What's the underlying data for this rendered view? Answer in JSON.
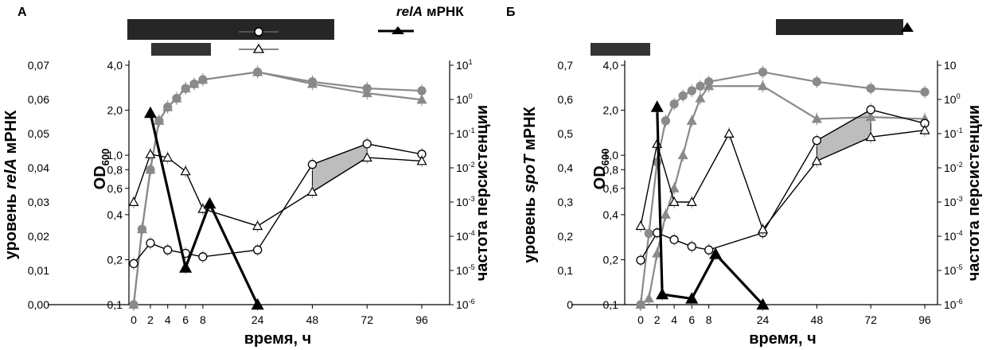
{
  "figure": {
    "legend": {
      "relA_label": "relA",
      "relA_unit": "мРНК"
    }
  },
  "chart_data": [
    {
      "panel_label": "А",
      "type": "line",
      "xlabel": "время, ч",
      "x_ticks": [
        "0",
        "2",
        "4",
        "6",
        "8",
        "24",
        "48",
        "72",
        "96"
      ],
      "left_axis": {
        "label_prefix": "уровень ",
        "gene": "relA",
        "label_suffix": " мРНК",
        "range": [
          0,
          0.07
        ],
        "ticks": [
          "0,00",
          "0,01",
          "0,02",
          "0,03",
          "0,04",
          "0,05",
          "0,06",
          "0,07"
        ]
      },
      "od_axis": {
        "label": "OD",
        "label_sub": "600",
        "scale": "log",
        "range": [
          0.1,
          4.0
        ],
        "ticks": [
          "0,1",
          "0,2",
          "0,4",
          "0,6",
          "0,8",
          "1,0",
          "2,0",
          "4,0"
        ]
      },
      "right_axis": {
        "label": "частота персистенции",
        "scale": "log",
        "range": [
          1e-06,
          10
        ],
        "ticks": [
          {
            "base": "10",
            "exp": "1"
          },
          {
            "base": "10",
            "exp": "0"
          },
          {
            "base": "10",
            "exp": "-1"
          },
          {
            "base": "10",
            "exp": "-2"
          },
          {
            "base": "10",
            "exp": "-3"
          },
          {
            "base": "10",
            "exp": "-4"
          },
          {
            "base": "10",
            "exp": "-5"
          },
          {
            "base": "10",
            "exp": "-6"
          }
        ]
      },
      "series": [
        {
          "style": "gray-filled-circle",
          "axis": "od",
          "points": [
            [
              0,
              0.1
            ],
            [
              1,
              0.32
            ],
            [
              2,
              0.8
            ],
            [
              3,
              1.7
            ],
            [
              4,
              2.1
            ],
            [
              5,
              2.4
            ],
            [
              6,
              2.8
            ],
            [
              7,
              3.0
            ],
            [
              8,
              3.2
            ],
            [
              24,
              3.6
            ],
            [
              48,
              3.1
            ],
            [
              72,
              2.8
            ],
            [
              96,
              2.7
            ]
          ]
        },
        {
          "style": "gray-filled-triangle",
          "axis": "od",
          "points": [
            [
              0,
              0.1
            ],
            [
              1,
              0.32
            ],
            [
              2,
              0.8
            ],
            [
              3,
              1.7
            ],
            [
              4,
              2.1
            ],
            [
              5,
              2.4
            ],
            [
              6,
              2.8
            ],
            [
              7,
              3.0
            ],
            [
              8,
              3.2
            ],
            [
              24,
              3.6
            ],
            [
              48,
              3.0
            ],
            [
              72,
              2.6
            ],
            [
              96,
              2.35
            ]
          ]
        },
        {
          "style": "open-circle",
          "axis": "left",
          "points": [
            [
              0,
              0.012
            ],
            [
              2,
              0.018
            ],
            [
              4,
              0.016
            ],
            [
              6,
              0.015
            ],
            [
              8,
              0.014
            ],
            [
              24,
              0.016
            ],
            [
              48,
              0.041
            ],
            [
              72,
              0.047
            ],
            [
              96,
              0.044
            ]
          ]
        },
        {
          "style": "open-triangle",
          "axis": "left",
          "points": [
            [
              0,
              0.03
            ],
            [
              2,
              0.044
            ],
            [
              4,
              0.043
            ],
            [
              6,
              0.039
            ],
            [
              8,
              0.028
            ],
            [
              24,
              0.023
            ],
            [
              48,
              0.033
            ],
            [
              72,
              0.043
            ],
            [
              96,
              0.042
            ]
          ]
        },
        {
          "style": "black-filled-triangle",
          "axis": "right",
          "points": [
            [
              2,
              0.4
            ],
            [
              6,
              1.2e-05
            ],
            [
              10,
              0.0009
            ],
            [
              24,
              1e-06
            ]
          ]
        }
      ],
      "shaded_region": {
        "x_from": 48,
        "x_to": 72
      }
    },
    {
      "panel_label": "Б",
      "type": "line",
      "xlabel": "время, ч",
      "x_ticks": [
        "0",
        "2",
        "4",
        "6",
        "8",
        "24",
        "48",
        "72",
        "96"
      ],
      "left_axis": {
        "label_prefix": "уровень ",
        "gene": "spoT",
        "label_suffix": " мРНК",
        "range": [
          0,
          0.7
        ],
        "ticks": [
          "0",
          "0,1",
          "0,2",
          "0,3",
          "0,4",
          "0,5",
          "0,6",
          "0,7"
        ]
      },
      "od_axis": {
        "label": "OD",
        "label_sub": "600",
        "scale": "log",
        "range": [
          0.1,
          4.0
        ],
        "ticks": [
          "0,1",
          "0,2",
          "0,4",
          "0,6",
          "0,8",
          "1,0",
          "2,0",
          "4,0"
        ]
      },
      "right_axis": {
        "label": "частота персистенции",
        "scale": "log",
        "range": [
          1e-06,
          10
        ],
        "ticks": [
          {
            "base": "10",
            "exp": ""
          },
          {
            "base": "10",
            "exp": "0"
          },
          {
            "base": "10",
            "exp": "-1"
          },
          {
            "base": "10",
            "exp": "-2"
          },
          {
            "base": "10",
            "exp": "-3"
          },
          {
            "base": "10",
            "exp": "-4"
          },
          {
            "base": "10",
            "exp": "-5"
          },
          {
            "base": "10",
            "exp": "-6"
          }
        ]
      },
      "series": [
        {
          "style": "gray-filled-circle",
          "axis": "od",
          "points": [
            [
              0,
              0.1
            ],
            [
              1,
              0.3
            ],
            [
              2,
              0.9
            ],
            [
              3,
              1.7
            ],
            [
              4,
              2.2
            ],
            [
              5,
              2.5
            ],
            [
              6,
              2.7
            ],
            [
              7,
              2.9
            ],
            [
              8,
              3.1
            ],
            [
              24,
              3.6
            ],
            [
              48,
              3.1
            ],
            [
              72,
              2.8
            ],
            [
              96,
              2.65
            ]
          ]
        },
        {
          "style": "gray-filled-triangle",
          "axis": "od",
          "points": [
            [
              0,
              0.1
            ],
            [
              1,
              0.11
            ],
            [
              2,
              0.22
            ],
            [
              3,
              0.4
            ],
            [
              4,
              0.6
            ],
            [
              5,
              1.0
            ],
            [
              6,
              1.7
            ],
            [
              7,
              2.4
            ],
            [
              8,
              2.9
            ],
            [
              24,
              2.9
            ],
            [
              48,
              1.75
            ],
            [
              72,
              1.8
            ],
            [
              96,
              1.75
            ]
          ]
        },
        {
          "style": "open-circle",
          "axis": "left",
          "points": [
            [
              0,
              0.13
            ],
            [
              2,
              0.21
            ],
            [
              4,
              0.19
            ],
            [
              6,
              0.17
            ],
            [
              8,
              0.16
            ],
            [
              24,
              0.21
            ],
            [
              48,
              0.48
            ],
            [
              72,
              0.57
            ],
            [
              96,
              0.53
            ]
          ]
        },
        {
          "style": "open-triangle",
          "axis": "left",
          "points": [
            [
              0,
              0.23
            ],
            [
              2,
              0.47
            ],
            [
              4,
              0.3
            ],
            [
              6,
              0.3
            ],
            [
              14,
              0.5
            ],
            [
              24,
              0.22
            ],
            [
              48,
              0.42
            ],
            [
              72,
              0.49
            ],
            [
              96,
              0.51
            ]
          ]
        },
        {
          "style": "black-filled-triangle",
          "axis": "right",
          "points": [
            [
              2,
              0.6
            ],
            [
              2.6,
              2e-06
            ],
            [
              6,
              1.5e-06
            ],
            [
              10,
              3e-05
            ],
            [
              24,
              1e-06
            ]
          ]
        }
      ],
      "shaded_region": {
        "x_from": 48,
        "x_to": 72
      }
    }
  ]
}
